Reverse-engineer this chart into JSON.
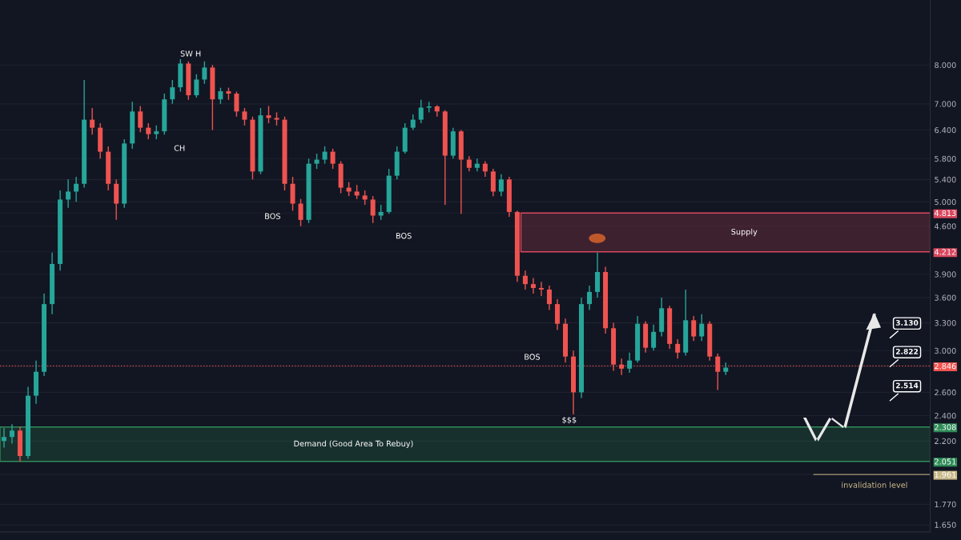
{
  "chart_data": {
    "type": "candlestick",
    "categories": [
      null,
      null,
      null,
      null,
      null,
      null,
      null,
      null,
      null,
      null,
      null,
      null,
      null,
      null,
      null,
      null,
      null,
      null,
      null,
      null,
      null,
      null,
      null,
      null,
      null,
      null,
      null,
      null,
      null,
      null,
      null,
      null,
      null,
      null,
      null,
      null,
      null,
      null,
      null,
      null,
      null,
      null,
      null,
      null,
      null,
      null,
      null,
      null,
      null,
      null,
      null,
      null,
      null,
      null,
      null,
      null,
      null,
      null,
      null,
      null,
      null,
      null,
      null,
      null,
      null,
      null,
      null,
      null,
      null,
      null,
      null,
      null,
      null,
      null,
      null,
      null,
      null,
      null,
      null,
      null,
      null,
      null,
      null,
      null,
      null,
      null,
      null,
      null,
      null,
      null,
      null,
      null,
      null,
      null,
      null,
      null,
      null,
      null,
      null,
      null,
      null,
      null,
      null,
      null,
      null,
      null,
      null,
      null,
      null,
      null,
      null,
      null,
      null,
      null,
      null,
      null
    ],
    "ohlc": [
      [
        2.2,
        2.3,
        2.15,
        2.23
      ],
      [
        2.23,
        2.33,
        2.18,
        2.28
      ],
      [
        2.28,
        2.31,
        2.05,
        2.09
      ],
      [
        2.09,
        2.65,
        2.07,
        2.57
      ],
      [
        2.57,
        2.9,
        2.5,
        2.79
      ],
      [
        2.79,
        3.65,
        2.75,
        3.52
      ],
      [
        3.52,
        4.2,
        3.4,
        4.04
      ],
      [
        4.04,
        5.2,
        3.95,
        5.04
      ],
      [
        5.04,
        5.4,
        4.9,
        5.18
      ],
      [
        5.18,
        5.45,
        5.0,
        5.32
      ],
      [
        5.32,
        7.6,
        5.25,
        6.63
      ],
      [
        6.63,
        6.9,
        6.3,
        6.45
      ],
      [
        6.45,
        6.55,
        5.8,
        5.94
      ],
      [
        5.94,
        6.05,
        5.2,
        5.32
      ],
      [
        5.32,
        5.4,
        4.7,
        4.97
      ],
      [
        4.97,
        6.2,
        4.9,
        6.11
      ],
      [
        6.11,
        7.05,
        6.0,
        6.82
      ],
      [
        6.82,
        6.95,
        6.35,
        6.45
      ],
      [
        6.45,
        6.55,
        6.2,
        6.31
      ],
      [
        6.31,
        6.5,
        6.2,
        6.37
      ],
      [
        6.37,
        7.25,
        6.3,
        7.11
      ],
      [
        7.11,
        7.6,
        7.0,
        7.41
      ],
      [
        7.41,
        8.18,
        7.3,
        8.04
      ],
      [
        8.04,
        8.1,
        7.1,
        7.21
      ],
      [
        7.21,
        7.75,
        7.15,
        7.61
      ],
      [
        7.61,
        8.1,
        7.5,
        7.93
      ],
      [
        7.93,
        8.0,
        6.4,
        7.11
      ],
      [
        7.11,
        7.4,
        7.0,
        7.31
      ],
      [
        7.31,
        7.4,
        7.1,
        7.25
      ],
      [
        7.25,
        7.3,
        6.7,
        6.82
      ],
      [
        6.82,
        6.9,
        6.5,
        6.63
      ],
      [
        6.63,
        6.7,
        5.4,
        5.55
      ],
      [
        5.55,
        6.9,
        5.5,
        6.73
      ],
      [
        6.73,
        6.95,
        6.55,
        6.67
      ],
      [
        6.67,
        6.8,
        6.5,
        6.63
      ],
      [
        6.63,
        6.7,
        5.2,
        5.32
      ],
      [
        5.32,
        5.45,
        4.85,
        4.97
      ],
      [
        4.97,
        5.05,
        4.6,
        4.7
      ],
      [
        4.7,
        5.8,
        4.65,
        5.7
      ],
      [
        5.7,
        5.9,
        5.6,
        5.78
      ],
      [
        5.78,
        6.05,
        5.7,
        5.94
      ],
      [
        5.94,
        6.0,
        5.6,
        5.7
      ],
      [
        5.7,
        5.75,
        5.15,
        5.25
      ],
      [
        5.25,
        5.35,
        5.1,
        5.18
      ],
      [
        5.18,
        5.3,
        5.05,
        5.11
      ],
      [
        5.11,
        5.2,
        4.95,
        5.04
      ],
      [
        5.04,
        5.1,
        4.65,
        4.77
      ],
      [
        4.77,
        4.95,
        4.7,
        4.83
      ],
      [
        4.83,
        5.6,
        4.8,
        5.47
      ],
      [
        5.47,
        6.05,
        5.4,
        5.94
      ],
      [
        5.94,
        6.55,
        5.9,
        6.45
      ],
      [
        6.45,
        6.75,
        6.4,
        6.63
      ],
      [
        6.63,
        7.1,
        6.55,
        6.91
      ],
      [
        6.91,
        7.05,
        6.8,
        6.94
      ],
      [
        6.94,
        6.97,
        6.7,
        6.82
      ],
      [
        6.82,
        6.85,
        4.95,
        5.86
      ],
      [
        5.86,
        6.45,
        5.8,
        6.37
      ],
      [
        6.37,
        6.4,
        4.8,
        5.78
      ],
      [
        5.78,
        5.85,
        5.55,
        5.62
      ],
      [
        5.62,
        5.8,
        5.55,
        5.7
      ],
      [
        5.7,
        5.75,
        5.45,
        5.55
      ],
      [
        5.55,
        5.6,
        5.1,
        5.18
      ],
      [
        5.18,
        5.5,
        5.1,
        5.4
      ],
      [
        5.4,
        5.45,
        4.75,
        4.83
      ],
      [
        4.83,
        4.85,
        3.8,
        3.88
      ],
      [
        3.88,
        3.95,
        3.7,
        3.77
      ],
      [
        3.77,
        3.85,
        3.65,
        3.72
      ],
      [
        3.72,
        3.8,
        3.62,
        3.7
      ],
      [
        3.7,
        3.75,
        3.45,
        3.52
      ],
      [
        3.52,
        3.58,
        3.22,
        3.29
      ],
      [
        3.29,
        3.35,
        2.88,
        2.94
      ],
      [
        2.94,
        3.0,
        2.41,
        2.6
      ],
      [
        2.6,
        3.6,
        2.55,
        3.52
      ],
      [
        3.52,
        3.75,
        3.45,
        3.67
      ],
      [
        3.67,
        4.2,
        3.6,
        3.93
      ],
      [
        3.93,
        4.0,
        3.18,
        3.24
      ],
      [
        3.24,
        3.3,
        2.8,
        2.86
      ],
      [
        2.86,
        2.92,
        2.76,
        2.82
      ],
      [
        2.82,
        2.98,
        2.78,
        2.9
      ],
      [
        2.9,
        3.38,
        2.88,
        3.29
      ],
      [
        3.29,
        3.32,
        2.98,
        3.03
      ],
      [
        3.03,
        3.28,
        3.0,
        3.2
      ],
      [
        3.2,
        3.6,
        3.15,
        3.47
      ],
      [
        3.47,
        3.5,
        3.02,
        3.07
      ],
      [
        3.07,
        3.12,
        2.92,
        2.98
      ],
      [
        2.98,
        3.7,
        2.95,
        3.33
      ],
      [
        3.33,
        3.38,
        3.1,
        3.15
      ],
      [
        3.15,
        3.4,
        3.1,
        3.29
      ],
      [
        3.29,
        3.32,
        2.9,
        2.94
      ],
      [
        2.94,
        2.97,
        2.62,
        2.79
      ],
      [
        2.79,
        2.88,
        2.76,
        2.83
      ],
      null,
      null,
      null,
      null,
      null,
      null,
      null,
      null,
      null,
      null,
      null,
      null,
      null,
      null,
      null,
      null,
      null,
      null,
      null,
      null,
      null,
      null,
      null,
      null,
      null
    ],
    "colors": [
      "#26a69a",
      "#26a69a",
      "#ef5350",
      "#26a69a",
      "#26a69a",
      "#26a69a",
      "#26a69a",
      "#26a69a",
      "#26a69a",
      "#26a69a",
      "#26a69a",
      "#ef5350",
      "#ef5350",
      "#ef5350",
      "#ef5350",
      "#26a69a",
      "#26a69a",
      "#ef5350",
      "#ef5350",
      "#26a69a",
      "#26a69a",
      "#26a69a",
      "#26a69a",
      "#ef5350",
      "#26a69a",
      "#26a69a",
      "#ef5350",
      "#26a69a",
      "#ef5350",
      "#ef5350",
      "#ef5350",
      "#ef5350",
      "#26a69a",
      "#ef5350",
      "#ef5350",
      "#ef5350",
      "#ef5350",
      "#ef5350",
      "#26a69a",
      "#26a69a",
      "#26a69a",
      "#ef5350",
      "#ef5350",
      "#ef5350",
      "#ef5350",
      "#ef5350",
      "#ef5350",
      "#26a69a",
      "#26a69a",
      "#26a69a",
      "#26a69a",
      "#26a69a",
      "#26a69a",
      "#26a69a",
      "#ef5350",
      "#ef5350",
      "#26a69a",
      "#ef5350",
      "#ef5350",
      "#26a69a",
      "#ef5350",
      "#ef5350",
      "#26a69a",
      "#ef5350",
      "#ef5350",
      "#ef5350",
      "#ef5350",
      "#ef5350",
      "#ef5350",
      "#ef5350",
      "#ef5350",
      "#ef5350",
      "#26a69a",
      "#26a69a",
      "#26a69a",
      "#ef5350",
      "#ef5350",
      "#ef5350",
      "#26a69a",
      "#26a69a",
      "#ef5350",
      "#26a69a",
      "#26a69a",
      "#ef5350",
      "#ef5350",
      "#26a69a",
      "#ef5350",
      "#26a69a",
      "#ef5350",
      "#ef5350",
      "#26a69a",
      null,
      null,
      null,
      null,
      null,
      null,
      null,
      null,
      null,
      null,
      null,
      null,
      null,
      null,
      null,
      null,
      null,
      null,
      null,
      null,
      null,
      null,
      null,
      null,
      null
    ],
    "log": true,
    "ylim": [
      1.61,
      10.0
    ],
    "yticks": [
      {
        "value": 1.65,
        "label": "1.650"
      },
      {
        "value": 1.77,
        "label": "1.770"
      },
      {
        "value": 1.961,
        "label": "1.961"
      },
      {
        "value": 2.051,
        "label": "2.051"
      },
      {
        "value": 2.308,
        "label": "2.308"
      },
      {
        "value": 2.846,
        "label": "2.846"
      },
      {
        "value": 4.212,
        "label": "4.212"
      },
      {
        "value": 4.813,
        "label": "4.813"
      },
      {
        "value": 2.2,
        "label": "2.200"
      },
      {
        "value": 2.4,
        "label": "2.400"
      },
      {
        "value": 2.6,
        "label": "2.600"
      },
      {
        "value": 3.0,
        "label": "3.000"
      },
      {
        "value": 3.3,
        "label": "3.300"
      },
      {
        "value": 3.6,
        "label": "3.600"
      },
      {
        "value": 3.9,
        "label": "3.900"
      },
      {
        "value": 4.6,
        "label": "4.600"
      },
      {
        "value": 5.0,
        "label": "5.000"
      },
      {
        "value": 5.4,
        "label": "5.400"
      },
      {
        "value": 5.8,
        "label": "5.800"
      },
      {
        "value": 6.4,
        "label": "6.400"
      },
      {
        "value": 7.0,
        "label": "7.000"
      },
      {
        "value": 8.0,
        "label": "8.000"
      }
    ],
    "tick_labels": "y",
    "grid": "y",
    "bands": [
      {
        "axis": "y",
        "from": 4.212,
        "to": 4.813,
        "label": "Supply",
        "color": "#d9485f"
      },
      {
        "axis": "y",
        "from": 2.051,
        "to": 2.308,
        "label": "Demand (Good Area To Rebuy)",
        "color": "#2e8b57"
      }
    ],
    "ref_lines": [
      {
        "axis": "y",
        "value": 1.961,
        "label": "invalidation level",
        "color": "#c9b98a"
      },
      {
        "axis": "y",
        "value": 2.846,
        "label": null,
        "color": "#ef5350",
        "line_style": "dotted"
      }
    ],
    "annotations": [
      {
        "text": "SW H",
        "y": 8.3
      },
      {
        "text": "CH",
        "y": 6.0
      },
      {
        "text": "BOS",
        "y": 4.75
      },
      {
        "text": "BOS",
        "y": 4.44
      },
      {
        "text": "BOS",
        "y": 2.93
      },
      {
        "text": "$$$",
        "y": 2.36
      },
      "3.130",
      "2.822",
      "2.514"
    ]
  }
}
